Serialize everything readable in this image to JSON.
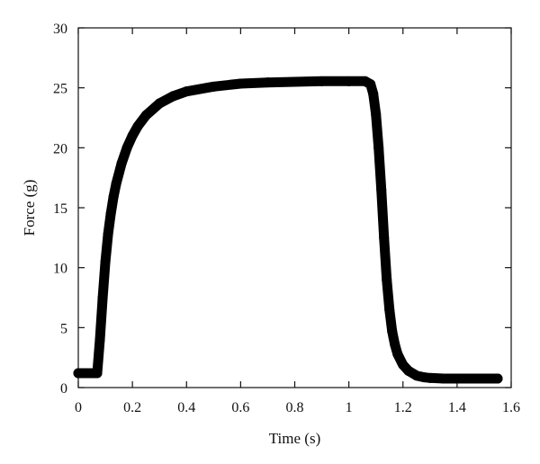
{
  "chart_data": {
    "type": "line",
    "title": "",
    "xlabel": "Time (s)",
    "ylabel": "Force (g)",
    "xlim": [
      0,
      1.6
    ],
    "ylim": [
      0,
      30
    ],
    "xticks": [
      0,
      0.2,
      0.4,
      0.6,
      0.8,
      1.0,
      1.2,
      1.4,
      1.6
    ],
    "xtick_labels": [
      "0",
      "0.2",
      "0.4",
      "0.6",
      "0.8",
      "1",
      "1.2",
      "1.4",
      "1.6"
    ],
    "yticks": [
      0,
      5,
      10,
      15,
      20,
      25,
      30
    ],
    "ytick_labels": [
      "0",
      "5",
      "10",
      "15",
      "20",
      "25",
      "30"
    ],
    "grid": false,
    "legend": "none",
    "line_color": "#000000",
    "series": [
      {
        "x": [
          0.0,
          0.03,
          0.06,
          0.07,
          0.08,
          0.09,
          0.1,
          0.11,
          0.12,
          0.13,
          0.14,
          0.16,
          0.18,
          0.2,
          0.22,
          0.25,
          0.3,
          0.35,
          0.4,
          0.5,
          0.6,
          0.7,
          0.8,
          0.9,
          1.0,
          1.06,
          1.08,
          1.09,
          1.1,
          1.11,
          1.12,
          1.13,
          1.14,
          1.15,
          1.16,
          1.17,
          1.18,
          1.2,
          1.22,
          1.25,
          1.28,
          1.3,
          1.35,
          1.4,
          1.5,
          1.55
        ],
        "y": [
          1.2,
          1.2,
          1.2,
          1.2,
          4.0,
          7.5,
          10.5,
          12.8,
          14.5,
          15.9,
          17.0,
          18.7,
          20.0,
          21.0,
          21.8,
          22.7,
          23.7,
          24.3,
          24.7,
          25.1,
          25.35,
          25.45,
          25.5,
          25.55,
          25.55,
          25.55,
          25.3,
          24.5,
          22.8,
          20.0,
          16.5,
          12.5,
          9.0,
          6.5,
          4.7,
          3.6,
          2.8,
          1.9,
          1.4,
          1.0,
          0.85,
          0.8,
          0.75,
          0.75,
          0.75,
          0.75
        ]
      }
    ]
  }
}
